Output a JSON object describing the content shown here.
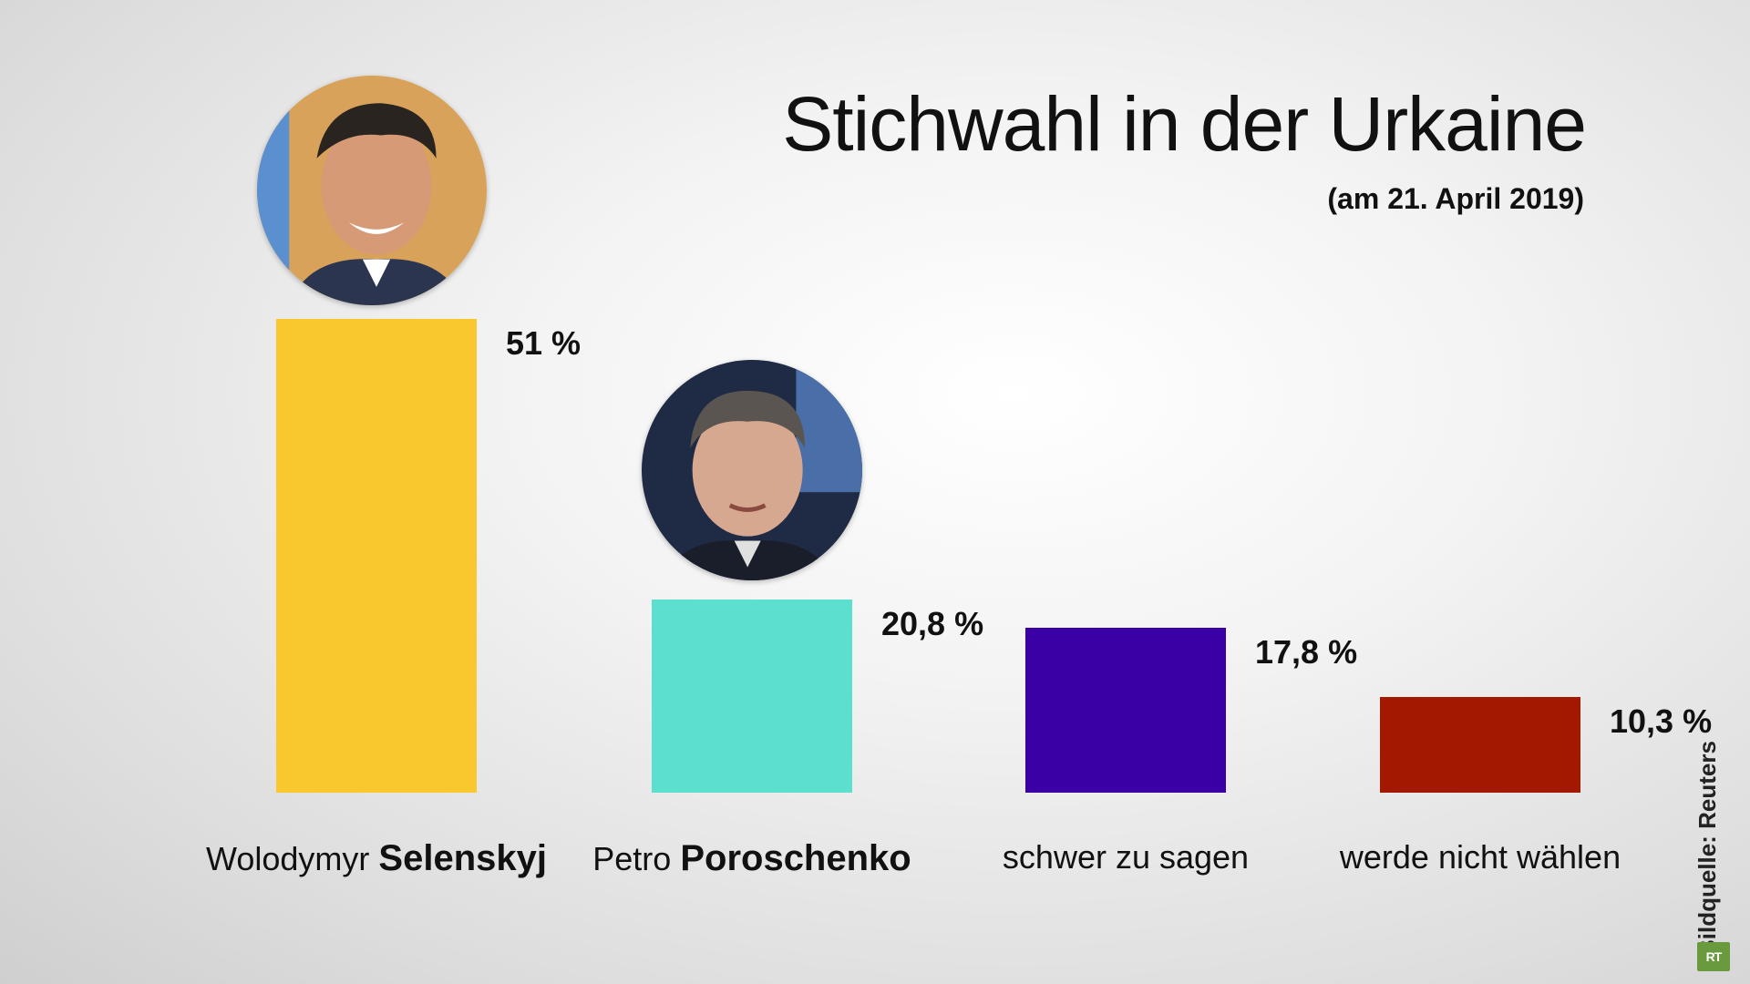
{
  "title": "Stichwahl in der Urkaine",
  "subtitle": "(am 21. April 2019)",
  "credit": "Bildquelle: Reuters",
  "logo_text": "RT",
  "chart_data": {
    "type": "bar",
    "title": "Stichwahl in der Urkaine",
    "subtitle": "(am 21. April 2019)",
    "categories": [
      {
        "first": "Wolodymyr",
        "last": "Selenskyj"
      },
      {
        "first": "Petro",
        "last": "Poroschenko"
      },
      {
        "first": "schwer zu sagen",
        "last": ""
      },
      {
        "first": "werde nicht wählen",
        "last": ""
      }
    ],
    "values": [
      51,
      20.8,
      17.8,
      10.3
    ],
    "value_labels": [
      "51 %",
      "20,8 %",
      "17,8 %",
      "10,3 %"
    ],
    "colors": [
      "#f9c82e",
      "#5ddfd0",
      "#3a00a6",
      "#a31800"
    ],
    "unit": "%",
    "ylim": [
      0,
      51
    ],
    "grid": false,
    "legend": "none",
    "photos": [
      "Selenskyj",
      "Poroschenko"
    ]
  }
}
